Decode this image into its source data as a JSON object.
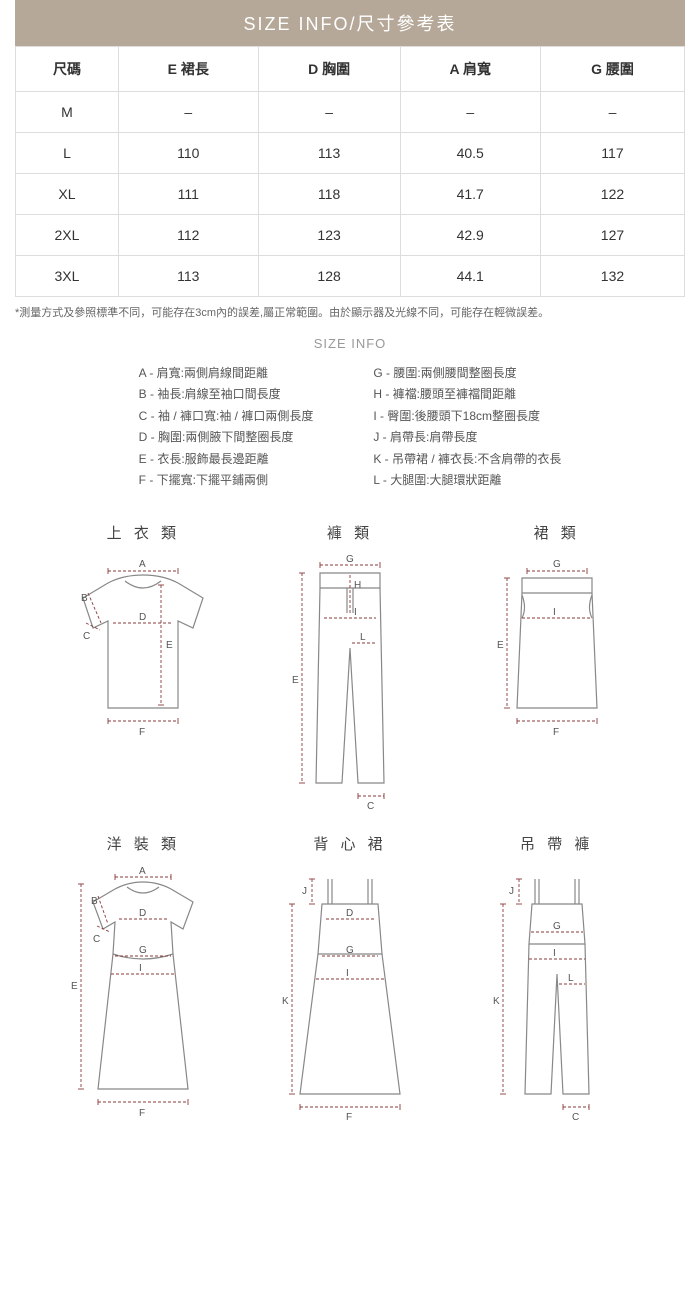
{
  "header": {
    "title": "SIZE  INFO/尺寸參考表"
  },
  "table": {
    "columns": [
      "尺碼",
      "E  裙長",
      "D  胸圍",
      "A  肩寬",
      "G  腰圍"
    ],
    "rows": [
      [
        "M",
        "–",
        "–",
        "–",
        "–"
      ],
      [
        "L",
        "110",
        "113",
        "40.5",
        "117"
      ],
      [
        "XL",
        "111",
        "118",
        "41.7",
        "122"
      ],
      [
        "2XL",
        "112",
        "123",
        "42.9",
        "127"
      ],
      [
        "3XL",
        "113",
        "128",
        "44.1",
        "132"
      ]
    ]
  },
  "note": "*測量方式及參照標準不同，可能存在3cm內的誤差,屬正常範圍。由於顯示器及光線不同，可能存在輕微誤差。",
  "info_title": "SIZE INFO",
  "legend": {
    "col1": [
      "A - 肩寬:兩側肩線間距離",
      "B - 袖長:肩線至袖口間長度",
      "C - 袖 / 褲口寬:袖 / 褲口兩側長度",
      "D - 胸圍:兩側腋下間整圈長度",
      "E - 衣長:服飾最長邊距離",
      "F - 下擺寬:下擺平鋪兩側"
    ],
    "col2": [
      "G - 腰圍:兩側腰間整圈長度",
      "H - 褲襠:腰頭至褲襠間距離",
      "I - 臀圍:後腰頭下18cm整圈長度",
      "J - 肩帶長:肩帶長度",
      "K - 吊帶裙 / 褲衣長:不含肩帶的衣長",
      "L - 大腿圍:大腿環狀距離"
    ]
  },
  "garments": [
    {
      "title": "上 衣 類",
      "type": "tshirt",
      "labels": [
        "A",
        "B",
        "C",
        "D",
        "E",
        "F"
      ]
    },
    {
      "title": "褲  類",
      "type": "pants",
      "labels": [
        "G",
        "H",
        "I",
        "L",
        "E",
        "C"
      ]
    },
    {
      "title": "裙  類",
      "type": "skirt",
      "labels": [
        "G",
        "I",
        "E",
        "F"
      ]
    },
    {
      "title": "洋 裝 類",
      "type": "dress",
      "labels": [
        "A",
        "B",
        "C",
        "D",
        "G",
        "I",
        "E",
        "F"
      ]
    },
    {
      "title": "背 心 裙",
      "type": "slipdress",
      "labels": [
        "J",
        "D",
        "G",
        "I",
        "K",
        "F"
      ]
    },
    {
      "title": "吊 帶 褲",
      "type": "overalls",
      "labels": [
        "J",
        "G",
        "I",
        "L",
        "K",
        "C"
      ]
    }
  ],
  "colors": {
    "header_bg": "#b5a898",
    "border": "#dddddd",
    "text": "#333333",
    "outline": "#888888",
    "measure": "#8b3a3a"
  }
}
